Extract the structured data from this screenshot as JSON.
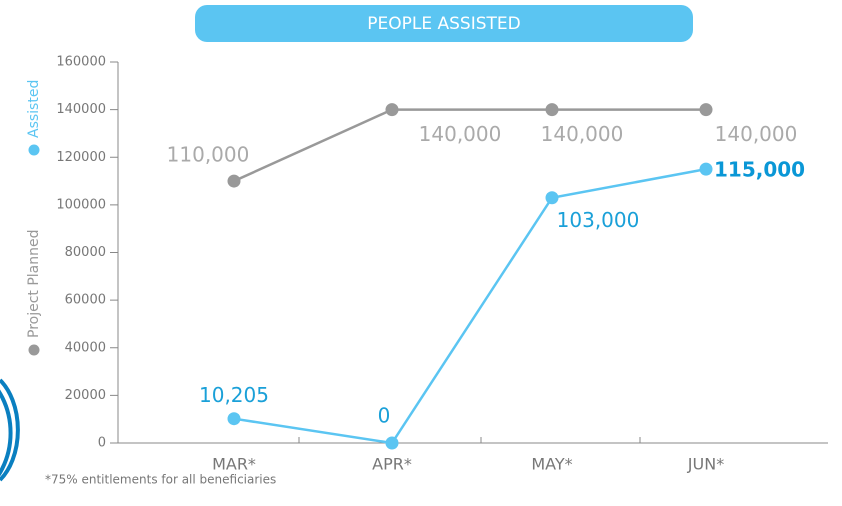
{
  "chart_data": {
    "type": "line",
    "title": "PEOPLE ASSISTED",
    "categories": [
      "MAR*",
      "APR*",
      "MAY*",
      "JUN*"
    ],
    "series": [
      {
        "name": "Project Planned",
        "color": "#999999",
        "values": [
          110000,
          140000,
          140000,
          140000
        ],
        "value_labels": [
          "110,000",
          "140,000",
          "140,000",
          "140,000"
        ]
      },
      {
        "name": "Assisted",
        "color": "#5bc5f2",
        "values": [
          10205,
          0,
          103000,
          115000
        ],
        "value_labels": [
          "10,205",
          "0",
          "103,000",
          "115,000"
        ]
      }
    ],
    "ylim": [
      0,
      160000
    ],
    "yticks": [
      0,
      20000,
      40000,
      60000,
      80000,
      100000,
      120000,
      140000,
      160000
    ],
    "footnote": "*75% entitlements for all beneficiaries"
  }
}
